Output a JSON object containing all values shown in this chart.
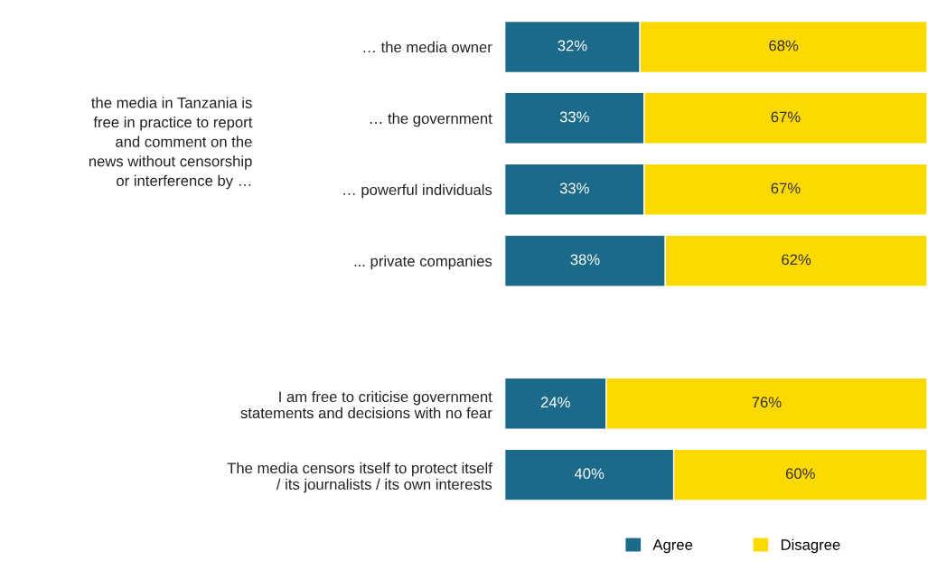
{
  "chart_data": {
    "type": "bar",
    "orientation": "horizontal",
    "stacked": true,
    "categories": [
      "… the media owner",
      "… the government",
      "… powerful individuals",
      "... private companies",
      null,
      "I am free to criticise government\nstatements and decisions with no fear",
      "The media censors itself to protect itself\n/ its journalists / its own interests"
    ],
    "series": [
      {
        "name": "Agree",
        "color": "#1b6a8a",
        "values": [
          32,
          33,
          33,
          38,
          null,
          24,
          40
        ],
        "value_labels": [
          "32%",
          "33%",
          "33%",
          "38%",
          null,
          "24%",
          "40%"
        ]
      },
      {
        "name": "Disagree",
        "color": "#fcd900",
        "values": [
          68,
          67,
          67,
          62,
          null,
          76,
          60
        ],
        "value_labels": [
          "68%",
          "67%",
          "67%",
          "62%",
          null,
          "76%",
          "60%"
        ]
      }
    ],
    "xlim": [
      0,
      100
    ],
    "tick_labels": "y",
    "legend": "bottom",
    "annotations": [
      "the media in Tanzania is\nfree in practice to report\nand comment on the\nnews without censorship\nor interference by …"
    ]
  }
}
